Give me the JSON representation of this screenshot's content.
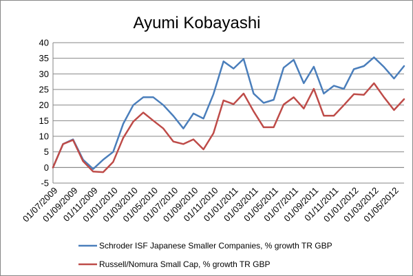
{
  "chart_data": {
    "type": "line",
    "title": "Ayumi Kobayashi",
    "xlabel": "",
    "ylabel": "",
    "ylim": [
      -5,
      40
    ],
    "y_ticks": [
      "-5",
      "0",
      "5",
      "10",
      "15",
      "20",
      "25",
      "30",
      "35",
      "40"
    ],
    "grid": true,
    "legend_position": "bottom",
    "x_tick_labels": [
      "01/07/2009",
      "01/09/2009",
      "01/11/2009",
      "01/01/2010",
      "01/03/2010",
      "01/05/2010",
      "01/07/2010",
      "01/09/2010",
      "01/11/2010",
      "01/01/2011",
      "01/03/2011",
      "01/05/2011",
      "01/07/2011",
      "01/09/2011",
      "01/11/2011",
      "01/01/2012",
      "01/03/2012",
      "01/05/2012"
    ],
    "x": [
      "01/07/2009",
      "01/08/2009",
      "01/09/2009",
      "01/10/2009",
      "01/11/2009",
      "01/12/2009",
      "01/01/2010",
      "01/02/2010",
      "01/03/2010",
      "01/04/2010",
      "01/05/2010",
      "01/06/2010",
      "01/07/2010",
      "01/08/2010",
      "01/09/2010",
      "01/10/2010",
      "01/11/2010",
      "01/12/2010",
      "01/01/2011",
      "01/02/2011",
      "01/03/2011",
      "01/04/2011",
      "01/05/2011",
      "01/06/2011",
      "01/07/2011",
      "01/08/2011",
      "01/09/2011",
      "01/10/2011",
      "01/11/2011",
      "01/12/2011",
      "01/01/2012",
      "01/02/2012",
      "01/03/2012",
      "01/04/2012",
      "01/05/2012",
      "01/06/2012"
    ],
    "series": [
      {
        "name": "Schroder ISF Japanese Smaller Companies, % growth TR GBP",
        "color": "#4A7EBB",
        "values": [
          0,
          7.5,
          9,
          2.5,
          -0.5,
          2.5,
          5,
          14,
          20,
          22.5,
          22.5,
          20,
          16.5,
          12.5,
          17.3,
          15.7,
          23.5,
          34,
          31.7,
          34.8,
          23.7,
          20.7,
          21.7,
          32,
          34.5,
          27,
          32.3,
          23.7,
          26.2,
          25.2,
          31.5,
          32.5,
          35.3,
          32.2,
          28.5,
          32.5
        ]
      },
      {
        "name": "Russell/Nomura Small Cap, % growth TR GBP",
        "color": "#BE4B48",
        "values": [
          0,
          7.5,
          8.8,
          2,
          -1.3,
          -1.5,
          1.8,
          9.5,
          14.7,
          17.6,
          15,
          12.5,
          8.3,
          7.5,
          9,
          5.8,
          11,
          21.5,
          20.3,
          23.7,
          18,
          12.9,
          12.9,
          20.2,
          22.5,
          18.9,
          25.2,
          16.6,
          16.6,
          20,
          23.5,
          23.3,
          27,
          22.5,
          18.4,
          21.9
        ]
      }
    ]
  }
}
